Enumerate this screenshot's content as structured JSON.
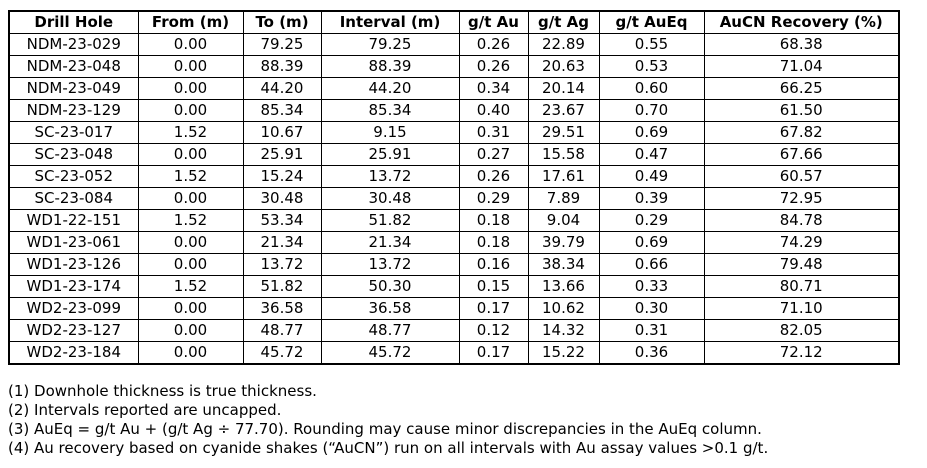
{
  "table": {
    "columns": [
      {
        "key": "drill-hole",
        "label": "Drill Hole"
      },
      {
        "key": "from-m",
        "label": "From (m)"
      },
      {
        "key": "to-m",
        "label": "To (m)"
      },
      {
        "key": "interval-m",
        "label": "Interval (m)"
      },
      {
        "key": "gt-au",
        "label": "g/t Au"
      },
      {
        "key": "gt-ag",
        "label": "g/t Ag"
      },
      {
        "key": "gt-aueq",
        "label": "g/t AuEq"
      },
      {
        "key": "aucn-recovery",
        "label": "AuCN Recovery (%)"
      }
    ],
    "rows": [
      [
        "NDM-23-029",
        "0.00",
        "79.25",
        "79.25",
        "0.26",
        "22.89",
        "0.55",
        "68.38"
      ],
      [
        "NDM-23-048",
        "0.00",
        "88.39",
        "88.39",
        "0.26",
        "20.63",
        "0.53",
        "71.04"
      ],
      [
        "NDM-23-049",
        "0.00",
        "44.20",
        "44.20",
        "0.34",
        "20.14",
        "0.60",
        "66.25"
      ],
      [
        "NDM-23-129",
        "0.00",
        "85.34",
        "85.34",
        "0.40",
        "23.67",
        "0.70",
        "61.50"
      ],
      [
        "SC-23-017",
        "1.52",
        "10.67",
        "9.15",
        "0.31",
        "29.51",
        "0.69",
        "67.82"
      ],
      [
        "SC-23-048",
        "0.00",
        "25.91",
        "25.91",
        "0.27",
        "15.58",
        "0.47",
        "67.66"
      ],
      [
        "SC-23-052",
        "1.52",
        "15.24",
        "13.72",
        "0.26",
        "17.61",
        "0.49",
        "60.57"
      ],
      [
        "SC-23-084",
        "0.00",
        "30.48",
        "30.48",
        "0.29",
        "7.89",
        "0.39",
        "72.95"
      ],
      [
        "WD1-22-151",
        "1.52",
        "53.34",
        "51.82",
        "0.18",
        "9.04",
        "0.29",
        "84.78"
      ],
      [
        "WD1-23-061",
        "0.00",
        "21.34",
        "21.34",
        "0.18",
        "39.79",
        "0.69",
        "74.29"
      ],
      [
        "WD1-23-126",
        "0.00",
        "13.72",
        "13.72",
        "0.16",
        "38.34",
        "0.66",
        "79.48"
      ],
      [
        "WD1-23-174",
        "1.52",
        "51.82",
        "50.30",
        "0.15",
        "13.66",
        "0.33",
        "80.71"
      ],
      [
        "WD2-23-099",
        "0.00",
        "36.58",
        "36.58",
        "0.17",
        "10.62",
        "0.30",
        "71.10"
      ],
      [
        "WD2-23-127",
        "0.00",
        "48.77",
        "48.77",
        "0.12",
        "14.32",
        "0.31",
        "82.05"
      ],
      [
        "WD2-23-184",
        "0.00",
        "45.72",
        "45.72",
        "0.17",
        "15.22",
        "0.36",
        "72.12"
      ]
    ]
  },
  "footnotes": [
    "(1) Downhole thickness is true thickness.",
    "(2) Intervals reported are uncapped.",
    "(3) AuEq = g/t Au + (g/t Ag ÷ 77.70). Rounding may cause minor discrepancies in the AuEq column.",
    "(4) Au recovery based on cyanide shakes (“AuCN”) run on all intervals with Au assay values >0.1 g/t."
  ]
}
